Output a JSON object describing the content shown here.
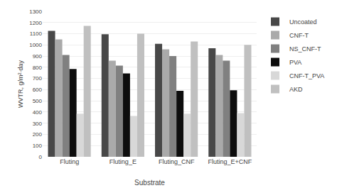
{
  "chart_data": {
    "type": "bar",
    "xlabel": "Substrate",
    "ylabel": "WVTR, g/m²·day",
    "categories": [
      "Fluting",
      "Fluting_E",
      "Fluting_CNF",
      "Fluting_E+CNF"
    ],
    "series": [
      {
        "name": "Uncoated",
        "color": "#484848",
        "values": [
          1125,
          1095,
          1010,
          970
        ]
      },
      {
        "name": "CNF-T",
        "color": "#aaaaaa",
        "values": [
          1050,
          860,
          960,
          910
        ]
      },
      {
        "name": "NS_CNF-T",
        "color": "#808080",
        "values": [
          910,
          815,
          900,
          860
        ]
      },
      {
        "name": "PVA",
        "color": "#0d0d0d",
        "values": [
          785,
          745,
          590,
          595
        ]
      },
      {
        "name": "CNF-T_PVA",
        "color": "#d8d8d8",
        "values": [
          385,
          365,
          385,
          390
        ]
      },
      {
        "name": "AKD",
        "color": "#c0c0c0",
        "values": [
          1170,
          1100,
          1030,
          1000
        ]
      }
    ],
    "ylim": [
      0,
      1300
    ],
    "yticks": [
      0,
      100,
      200,
      300,
      400,
      500,
      600,
      700,
      800,
      900,
      1000,
      1100,
      1200,
      1300
    ],
    "grid": true,
    "legend": "right"
  }
}
